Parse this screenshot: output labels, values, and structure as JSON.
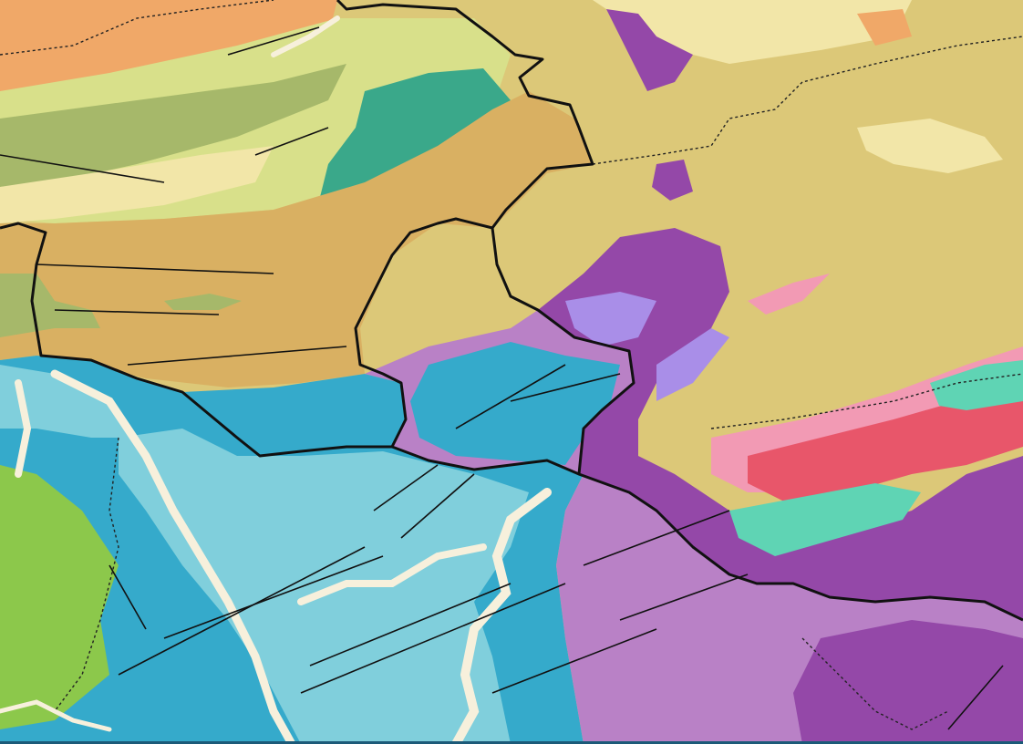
{
  "map": {
    "type": "geological-map",
    "colors": {
      "orange": "#f0a868",
      "yellow_green": "#d8e08a",
      "olive": "#a6b86a",
      "ochre": "#d9b062",
      "khaki": "#dcc878",
      "pale_yellow": "#f2e6a8",
      "teal_green": "#3aa88a",
      "blue": "#35aacb",
      "light_blue": "#80cfdc",
      "lilac": "#b981c6",
      "purple": "#9448a8",
      "violet_light": "#a98ee8",
      "red_pink": "#e8566a",
      "pink": "#f29ab4",
      "turquoise": "#5fd4b4",
      "green": "#8cc84b",
      "river": "#f7f0dc",
      "border": "#111111"
    },
    "layers": [
      "geological-units",
      "faults",
      "rivers",
      "national-borders",
      "provincial-borders"
    ]
  }
}
